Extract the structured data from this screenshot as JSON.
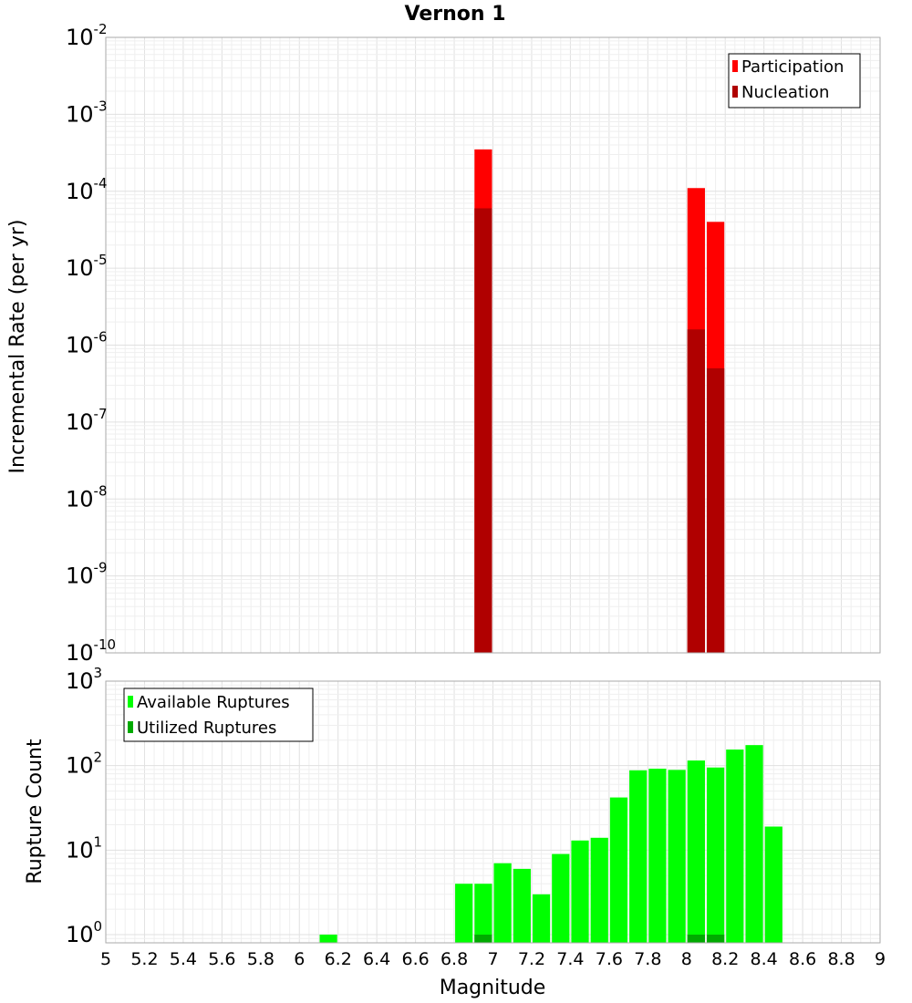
{
  "figure_title": "Vernon 1",
  "chart_data": [
    {
      "type": "bar",
      "panel": "top",
      "xlabel": "Magnitude",
      "ylabel": "Incremental Rate (per yr)",
      "xlim": [
        5,
        9
      ],
      "ylim": [
        1e-10,
        0.01
      ],
      "yscale": "log",
      "grid": true,
      "legend_position": "top-right",
      "series": [
        {
          "name": "Participation",
          "color": "#ff0000",
          "x": [
            6.95,
            8.05,
            8.15
          ],
          "values": [
            0.00035,
            0.00011,
            4e-05
          ]
        },
        {
          "name": "Nucleation",
          "color": "#b00000",
          "x": [
            6.95,
            8.05,
            8.15
          ],
          "values": [
            6e-05,
            1.6e-06,
            5e-07
          ]
        }
      ]
    },
    {
      "type": "bar",
      "panel": "bottom",
      "xlabel": "Magnitude",
      "ylabel": "Rupture Count",
      "xlim": [
        5,
        9
      ],
      "ylim": [
        0.8,
        1000
      ],
      "yscale": "log",
      "grid": true,
      "legend_position": "top-left",
      "series": [
        {
          "name": "Available Ruptures",
          "color": "#00ff00",
          "x": [
            6.15,
            6.85,
            6.95,
            7.05,
            7.15,
            7.25,
            7.35,
            7.45,
            7.55,
            7.65,
            7.75,
            7.85,
            7.95,
            8.05,
            8.15,
            8.25,
            8.35,
            8.45
          ],
          "values": [
            1,
            4,
            4,
            7,
            6,
            3,
            9,
            13,
            14,
            42,
            88,
            92,
            89,
            115,
            95,
            155,
            175,
            19
          ]
        },
        {
          "name": "Utilized Ruptures",
          "color": "#00aa00",
          "x": [
            6.95,
            8.05,
            8.15
          ],
          "values": [
            1,
            1,
            1
          ]
        }
      ]
    }
  ],
  "x_ticks": [
    "5",
    "5.2",
    "5.4",
    "5.6",
    "5.8",
    "6",
    "6.2",
    "6.4",
    "6.6",
    "6.8",
    "7",
    "7.2",
    "7.4",
    "7.6",
    "7.8",
    "8",
    "8.2",
    "8.4",
    "8.6",
    "8.8",
    "9"
  ],
  "top_y_ticks": [
    {
      "base": "10",
      "exp": "-2"
    },
    {
      "base": "10",
      "exp": "-3"
    },
    {
      "base": "10",
      "exp": "-4"
    },
    {
      "base": "10",
      "exp": "-5"
    },
    {
      "base": "10",
      "exp": "-6"
    },
    {
      "base": "10",
      "exp": "-7"
    },
    {
      "base": "10",
      "exp": "-8"
    },
    {
      "base": "10",
      "exp": "-9"
    },
    {
      "base": "10",
      "exp": "-10"
    }
  ],
  "bottom_y_ticks": [
    {
      "base": "10",
      "exp": "3"
    },
    {
      "base": "10",
      "exp": "2"
    },
    {
      "base": "10",
      "exp": "1"
    },
    {
      "base": "10",
      "exp": "0"
    }
  ]
}
